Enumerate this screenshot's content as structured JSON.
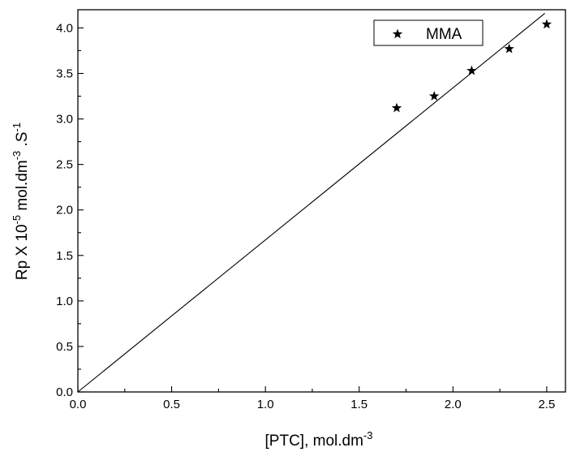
{
  "chart_data": {
    "type": "scatter",
    "title": "",
    "xlabel": {
      "base": "[PTC], mol.dm",
      "sup": "-3"
    },
    "ylabel": {
      "parts": [
        {
          "text": "Rp X 10",
          "sup": false
        },
        {
          "text": "-5",
          "sup": true
        },
        {
          "text": " mol.dm",
          "sup": false
        },
        {
          "text": "-3",
          "sup": true
        },
        {
          "text": " .S",
          "sup": false
        },
        {
          "text": "-1",
          "sup": true
        }
      ]
    },
    "xlim": [
      0,
      2.6
    ],
    "ylim": [
      0,
      4.2
    ],
    "xticks": [
      0.0,
      0.5,
      1.0,
      1.5,
      2.0,
      2.5
    ],
    "xtick_labels": [
      "0.0",
      "0.5",
      "1.0",
      "1.5",
      "2.0",
      "2.5"
    ],
    "yticks": [
      0.0,
      0.5,
      1.0,
      1.5,
      2.0,
      2.5,
      3.0,
      3.5,
      4.0
    ],
    "ytick_labels": [
      "0.0",
      "0.5",
      "1.0",
      "1.5",
      "2.0",
      "2.5",
      "3.0",
      "3.5",
      "4.0"
    ],
    "grid": false,
    "legend_position": "top-right",
    "series": [
      {
        "name": "MMA",
        "marker": "star",
        "points": [
          {
            "x": 1.7,
            "y": 3.12
          },
          {
            "x": 1.9,
            "y": 3.25
          },
          {
            "x": 2.1,
            "y": 3.53
          },
          {
            "x": 2.3,
            "y": 3.77
          },
          {
            "x": 2.5,
            "y": 4.04
          }
        ]
      }
    ],
    "fit_line": {
      "from": [
        0,
        0
      ],
      "to": [
        2.49,
        4.16
      ]
    },
    "colors": {
      "marks": "#000000",
      "background": "#ffffff"
    }
  }
}
